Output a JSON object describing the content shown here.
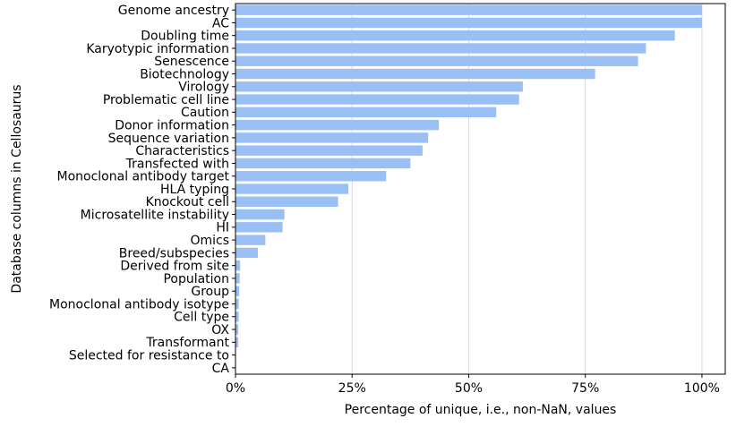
{
  "chart_data": {
    "type": "bar",
    "orientation": "horizontal",
    "title": "",
    "xlabel": "Percentage of unique, i.e., non-NaN, values",
    "ylabel": "Database columns in Cellosaurus",
    "xlim": [
      0,
      105
    ],
    "x_ticks": [
      0,
      25,
      50,
      75,
      100
    ],
    "x_tick_labels": [
      "0%",
      "25%",
      "50%",
      "75%",
      "100%"
    ],
    "grid": "vertical",
    "bar_color": "#99bff5",
    "categories": [
      "Genome ancestry",
      "AC",
      "Doubling time",
      "Karyotypic information",
      "Senescence",
      "Biotechnology",
      "Virology",
      "Problematic cell line",
      "Caution",
      "Donor information",
      "Sequence variation",
      "Characteristics",
      "Transfected with",
      "Monoclonal antibody target",
      "HLA typing",
      "Knockout cell",
      "Microsatellite instability",
      "HI",
      "Omics",
      "Breed/subspecies",
      "Derived from site",
      "Population",
      "Group",
      "Monoclonal antibody isotype",
      "Cell type",
      "OX",
      "Transformant",
      "Selected for resistance to",
      "CA"
    ],
    "values": [
      100,
      100,
      94.2,
      88.0,
      86.3,
      77.1,
      61.6,
      60.8,
      55.9,
      43.6,
      41.3,
      40.1,
      37.5,
      32.3,
      24.2,
      22.0,
      10.5,
      10.1,
      6.4,
      4.8,
      1.0,
      0.9,
      0.8,
      0.7,
      0.7,
      0.6,
      0.6,
      0.1,
      0.1
    ]
  }
}
